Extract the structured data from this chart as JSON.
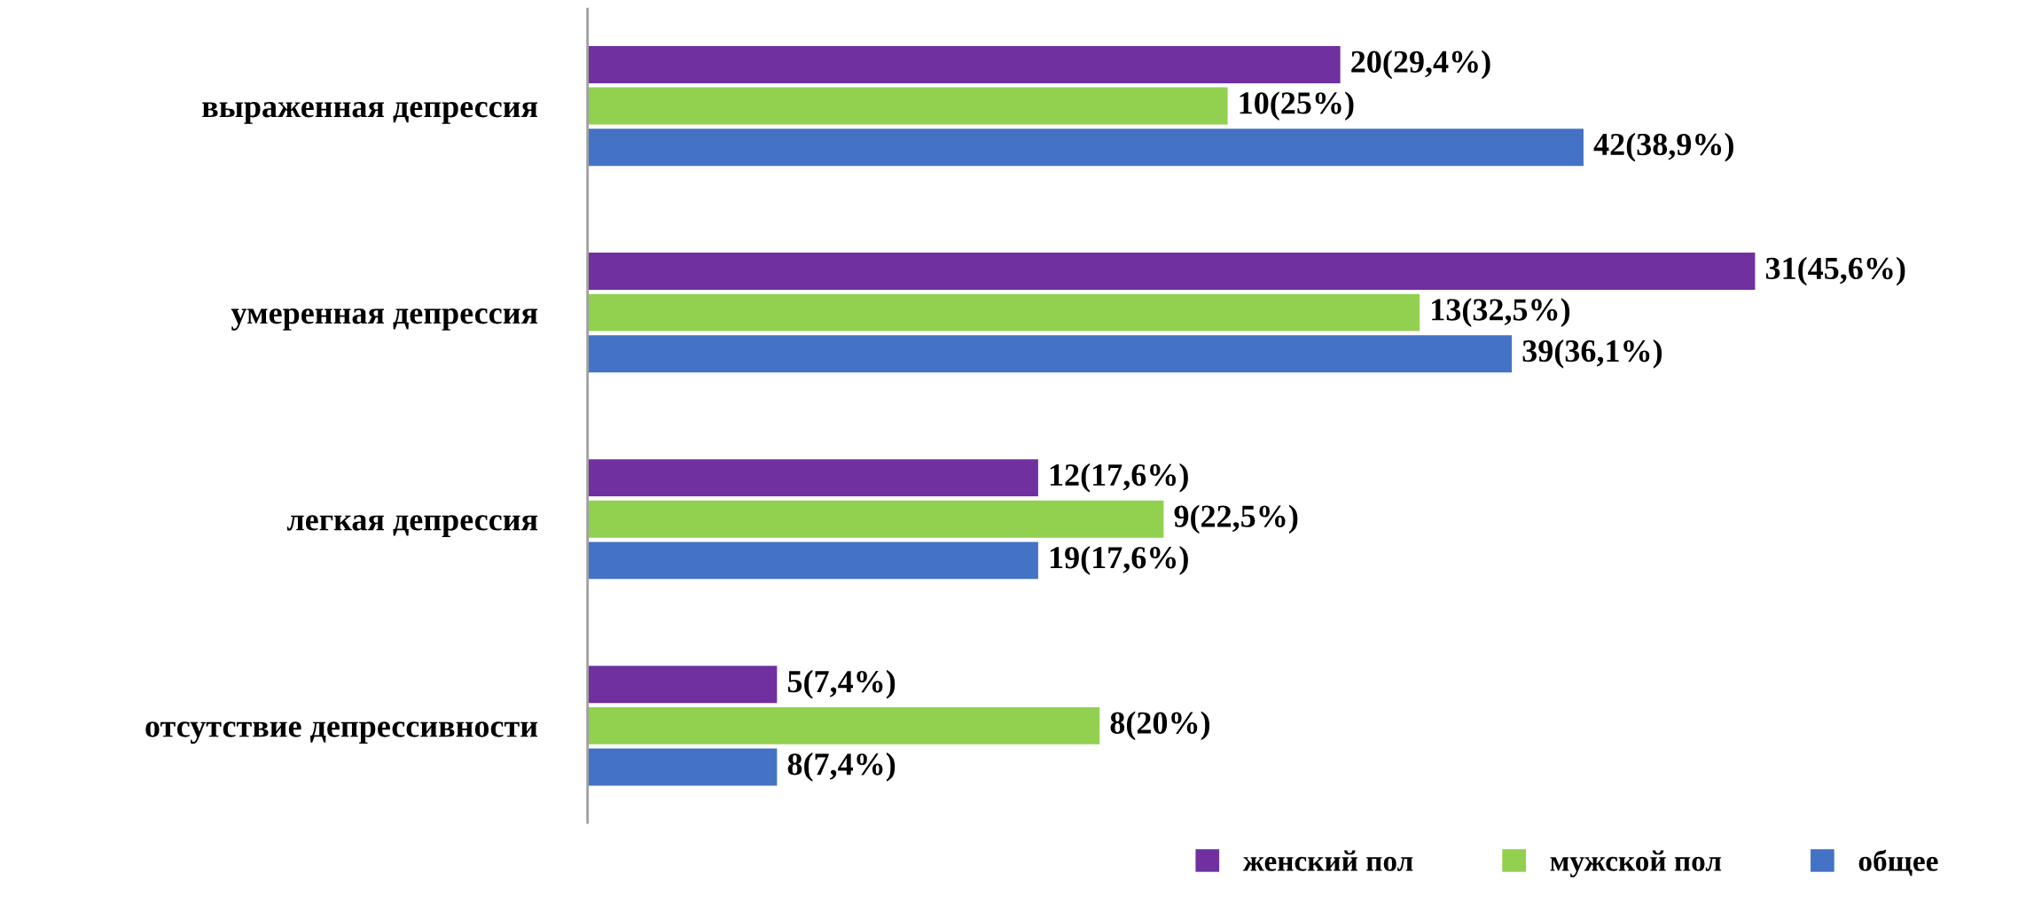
{
  "chart_data": {
    "type": "bar",
    "orientation": "horizontal",
    "categories": [
      "выраженная депрессия",
      "умеренная депрессия",
      "легкая депрессия",
      "отсутствие депрессивности"
    ],
    "series": [
      {
        "name": "женский пол",
        "color": "#7030a0",
        "values": [
          29.4,
          45.6,
          17.6,
          7.4
        ],
        "value_labels": [
          "20(29,4%)",
          "31(45,6%)",
          "12(17,6%)",
          "5(7,4%)"
        ]
      },
      {
        "name": "мужской пол",
        "color": "#92d050",
        "values": [
          25,
          32.5,
          22.5,
          20
        ],
        "value_labels": [
          "10(25%)",
          "13(32,5%)",
          "9(22,5%)",
          "8(20%)"
        ]
      },
      {
        "name": "общее",
        "color": "#4472c4",
        "values": [
          38.9,
          36.1,
          17.6,
          7.4
        ],
        "value_labels": [
          "42(38,9%)",
          "39(36,1%)",
          "19(17,6%)",
          "8(7,4%)"
        ]
      }
    ],
    "legend": "bottom right",
    "grid": false
  }
}
